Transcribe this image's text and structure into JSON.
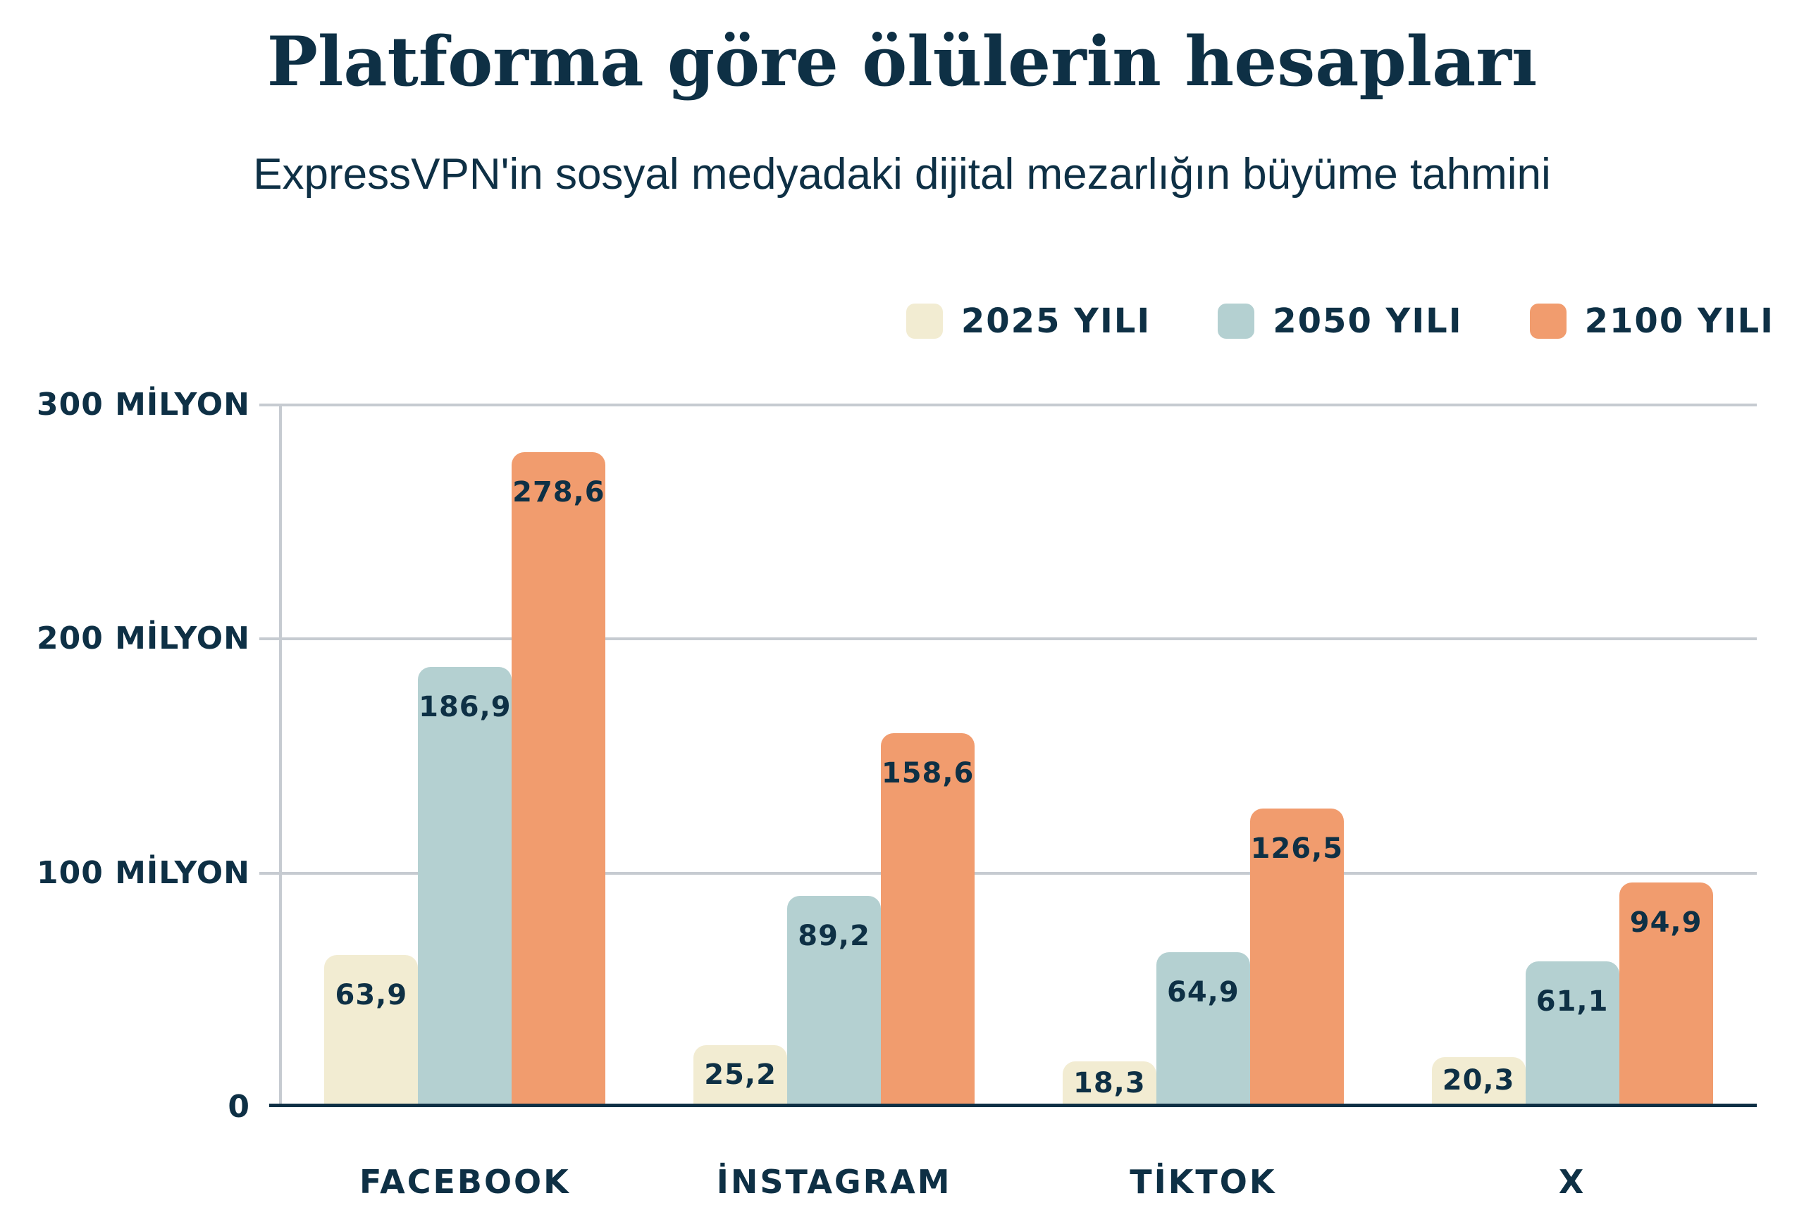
{
  "title": "Platforma göre ölülerin hesapları",
  "subtitle": "ExpressVPN'in sosyal medyadaki dijital mezarlığın büyüme tahmini",
  "colors": {
    "navy": "#0e3045",
    "cream": "#f2ecd2",
    "blue": "#b4d0d1",
    "orange": "#f19c6e",
    "grid": "#c6cbd1",
    "background": "#ffffff"
  },
  "legend": [
    {
      "label": "2025 YILI",
      "color_key": "cream"
    },
    {
      "label": "2050 YILI",
      "color_key": "blue"
    },
    {
      "label": "2100 YILI",
      "color_key": "orange"
    }
  ],
  "y_axis": {
    "unit": "MİLYON",
    "ticks": [
      {
        "value": 300,
        "label": "300 MİLYON"
      },
      {
        "value": 200,
        "label": "200 MİLYON"
      },
      {
        "value": 100,
        "label": "100 MİLYON"
      },
      {
        "value": 0,
        "label": "0"
      }
    ]
  },
  "chart_data": {
    "type": "bar",
    "categories": [
      "FACEBOOK",
      "İNSTAGRAM",
      "TİKTOK",
      "X"
    ],
    "series": [
      {
        "name": "2025 YILI",
        "color_key": "cream",
        "values": [
          63.9,
          25.2,
          18.3,
          20.3
        ],
        "labels": [
          "63,9",
          "25,2",
          "18,3",
          "20,3"
        ]
      },
      {
        "name": "2050 YILI",
        "color_key": "blue",
        "values": [
          186.9,
          89.2,
          64.9,
          61.1
        ],
        "labels": [
          "186,9",
          "89,2",
          "64,9",
          "61,1"
        ]
      },
      {
        "name": "2100 YILI",
        "color_key": "orange",
        "values": [
          278.6,
          158.6,
          126.5,
          94.9
        ],
        "labels": [
          "278,6",
          "158,6",
          "126,5",
          "94,9"
        ]
      }
    ],
    "title": "Platforma göre ölülerin hesapları",
    "subtitle": "ExpressVPN'in sosyal medyadaki dijital mezarlığın büyüme tahmini",
    "xlabel": "",
    "ylabel": "",
    "ylim": [
      0,
      300
    ],
    "grid": true,
    "legend_position": "top-right"
  }
}
